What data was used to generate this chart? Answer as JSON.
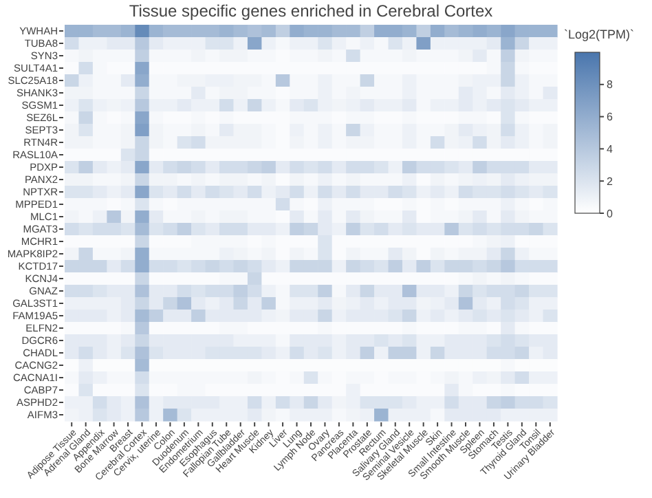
{
  "chart_data": {
    "type": "heatmap",
    "title": "Tissue specific genes enriched in Cerebral Cortex",
    "clabel": "`Log2(TPM)`",
    "color": "#4a76ad",
    "clim": [
      0,
      10
    ],
    "cticks": [
      0,
      2,
      4,
      6,
      8
    ],
    "categories": [
      "Adipose Tissue",
      "Adrenal Gland",
      "Appendix",
      "Bone Marrow",
      "Breast",
      "Cerebral Cortex",
      "Cervix, uterine",
      "Colon",
      "Duodenum",
      "Endometrium",
      "Esophagus",
      "Fallopian Tube",
      "Gallbladder",
      "Heart Muscle",
      "Kidney",
      "Liver",
      "Lung",
      "Lymph Node",
      "Ovary",
      "Pancreas",
      "Placenta",
      "Prostate",
      "Rectum",
      "Salivary Gland",
      "Seminal Vesicle",
      "Skeletal Muscle",
      "Skin",
      "Small Intestine",
      "Smooth Muscle",
      "Spleen",
      "Stomach",
      "Testis",
      "Thyroid Gland",
      "Tonsil",
      "Urinary Bladder"
    ],
    "y_categories": [
      "YWHAH",
      "TUBA8",
      "SYN3",
      "SULT4A1",
      "SLC25A18",
      "SHANK3",
      "SGSM1",
      "SEZ6L",
      "SEPT3",
      "RTN4R",
      "RASL10A",
      "PDXP",
      "PANX2",
      "NPTXR",
      "MPPED1",
      "MLC1",
      "MGAT3",
      "MCHR1",
      "MAPK8IP2",
      "KCTD17",
      "KCNJ4",
      "GNAZ",
      "GAL3ST1",
      "FAM19A5",
      "ELFN2",
      "DGCR6",
      "CHADL",
      "CACNG2",
      "CACNA1I",
      "CABP7",
      "ASPHD2",
      "AIFM3"
    ],
    "cells": [
      [
        5.5,
        5.5,
        5,
        5,
        5.5,
        8.5,
        5.5,
        5,
        5,
        5,
        5,
        5.5,
        5,
        4.5,
        5,
        3.5,
        6,
        5.5,
        5.5,
        5,
        5,
        3.5,
        6,
        6,
        5.5,
        3.5,
        6,
        5,
        5.5,
        6,
        5.5,
        6.5,
        5.5,
        5.5,
        5.5
      ],
      [
        2.5,
        1,
        1,
        1.5,
        1.5,
        4,
        1.5,
        1,
        1,
        1,
        2,
        2,
        1,
        6.5,
        1,
        0.5,
        1,
        1,
        2,
        1,
        0.5,
        1,
        0.5,
        2,
        1,
        7,
        1,
        1,
        1,
        1,
        1.5,
        5.5,
        3,
        1,
        1
      ],
      [
        0.5,
        0.8,
        0.5,
        0.5,
        0.5,
        3.5,
        0.5,
        0.5,
        0.5,
        0.8,
        0.5,
        0.8,
        0.8,
        0.5,
        0.5,
        0.3,
        0.5,
        0.5,
        0.8,
        0.5,
        2.5,
        0.5,
        0.5,
        0.5,
        0.8,
        0.5,
        0.5,
        0.5,
        0.8,
        1.5,
        0.5,
        3.5,
        0.8,
        0.5,
        0.5
      ],
      [
        0.3,
        2.5,
        0.5,
        0.3,
        0.3,
        6.5,
        0.3,
        0.3,
        0.3,
        0.3,
        0.3,
        0.3,
        0.3,
        0.3,
        0.3,
        0.3,
        0.3,
        0.3,
        0.3,
        0.3,
        0.3,
        0.3,
        0.3,
        0.3,
        0.3,
        0.3,
        0.3,
        0.3,
        0.3,
        0.3,
        0.5,
        3,
        0.5,
        0.3,
        0.3
      ],
      [
        3,
        1,
        0.5,
        0.5,
        1.5,
        6,
        0.5,
        0.5,
        0.8,
        0.8,
        1,
        1,
        0.8,
        0.8,
        0.5,
        4,
        0.5,
        0.5,
        1,
        0.5,
        0.5,
        3,
        0.5,
        0.5,
        1,
        0.5,
        0.5,
        0.5,
        0.8,
        1,
        1,
        3,
        1,
        0.5,
        0.5
      ],
      [
        0.8,
        0.8,
        0.5,
        0.5,
        0.5,
        3,
        0.5,
        0.5,
        0.5,
        1.5,
        0.5,
        0.8,
        0.8,
        0.5,
        0.5,
        0.3,
        0.5,
        0.5,
        1,
        0.5,
        0.8,
        0.5,
        0.5,
        0.5,
        1,
        0.5,
        0.5,
        0.5,
        1.5,
        1,
        0.5,
        1.5,
        1,
        0.5,
        1.5
      ],
      [
        1,
        2,
        1,
        0.8,
        1,
        4,
        1,
        1,
        1.5,
        1,
        1,
        2.5,
        1,
        3,
        1,
        0.5,
        1.5,
        2,
        1,
        0.8,
        1,
        1.5,
        1,
        1,
        1.5,
        0.5,
        1,
        1,
        1.5,
        1,
        1.5,
        2,
        1.5,
        1,
        1
      ],
      [
        0.5,
        3,
        0.5,
        0.3,
        0.5,
        6.5,
        0.5,
        0.3,
        0.3,
        0.5,
        0.3,
        0.5,
        0.3,
        0.3,
        0.3,
        0.3,
        0.5,
        0.5,
        0.5,
        0.3,
        0.5,
        0.5,
        0.3,
        0.3,
        0.5,
        0.3,
        0.3,
        0.3,
        0.5,
        0.5,
        0.3,
        2,
        0.5,
        0.3,
        0.3
      ],
      [
        0.8,
        2,
        0.5,
        0.5,
        0.8,
        7,
        0.8,
        0.5,
        0.5,
        0.8,
        0.5,
        1.5,
        0.8,
        0.8,
        0.5,
        0.3,
        1,
        0.5,
        1,
        0.5,
        3,
        1,
        0.5,
        0.5,
        1,
        0.5,
        0.5,
        0.8,
        1.5,
        1,
        0.8,
        2.5,
        1,
        0.5,
        0.8
      ],
      [
        0.8,
        0.8,
        0.5,
        0.5,
        0.8,
        3,
        0.8,
        0.5,
        2,
        2.5,
        0.8,
        0.8,
        0.8,
        0.8,
        0.5,
        0.3,
        0.8,
        0.5,
        1,
        0.5,
        0.8,
        0.8,
        0.5,
        0.5,
        1,
        0.5,
        2.5,
        0.8,
        1,
        2.5,
        0.8,
        1.5,
        1,
        0.5,
        0.8
      ],
      [
        0.3,
        0.3,
        0.3,
        0.3,
        2,
        3,
        0.3,
        0.3,
        0.3,
        0.3,
        0.3,
        0.3,
        0.3,
        0.3,
        0.3,
        0.3,
        0.3,
        0.3,
        0.3,
        0.3,
        0.3,
        0.3,
        0.3,
        0.3,
        0.3,
        0.3,
        0.3,
        0.3,
        0.3,
        0.3,
        0.3,
        0.3,
        0.3,
        0.3,
        0.3
      ],
      [
        2,
        3.5,
        1.5,
        1,
        1.5,
        6.5,
        1.5,
        2.5,
        3,
        2.5,
        1.5,
        2.5,
        2.5,
        3,
        3.5,
        1.5,
        2.5,
        2,
        2.5,
        1.5,
        2.5,
        2.5,
        2,
        1,
        3.5,
        2.5,
        2.5,
        2,
        1.5,
        3.5,
        2.5,
        2.5,
        2.5,
        1.5,
        1.5
      ],
      [
        0.8,
        0.8,
        0.5,
        0.5,
        0.8,
        3,
        0.8,
        0.8,
        0.5,
        0.8,
        0.5,
        0.8,
        0.8,
        0.5,
        0.8,
        0.3,
        0.8,
        0.5,
        1,
        0.5,
        0.8,
        0.5,
        0.5,
        0.5,
        1,
        0.3,
        0.8,
        0.5,
        0.8,
        1,
        0.8,
        1.5,
        1,
        0.8,
        0.8
      ],
      [
        2,
        2,
        1.5,
        1,
        1.5,
        6.5,
        2,
        1.5,
        2.5,
        1.5,
        2.5,
        2,
        1.5,
        2.5,
        1,
        1.5,
        2.5,
        1,
        2.5,
        1.5,
        2.5,
        1.5,
        1.5,
        2.5,
        2,
        1,
        1.5,
        1,
        2.5,
        2,
        2,
        2.5,
        2,
        1.5,
        2
      ],
      [
        0.5,
        0.5,
        0.5,
        0.3,
        0.5,
        2,
        0.5,
        0.3,
        0.5,
        0.5,
        0.5,
        0.5,
        0.5,
        0.5,
        0.5,
        2.5,
        0.5,
        0.3,
        1,
        0.5,
        0.5,
        0.5,
        0.3,
        0.3,
        0.5,
        0.3,
        0.5,
        0.3,
        0.5,
        0.5,
        0.5,
        1,
        0.5,
        0.3,
        0.5
      ],
      [
        0.8,
        0.5,
        1,
        4,
        0.8,
        6,
        1.5,
        0.5,
        0.5,
        0.8,
        0.5,
        0.8,
        0.8,
        0.5,
        0.5,
        0.3,
        1.5,
        0.5,
        1.5,
        0.5,
        1.5,
        0.8,
        0.5,
        0.5,
        1.5,
        0.3,
        0.5,
        0.5,
        0.8,
        1.5,
        0.5,
        1.5,
        0.8,
        0.5,
        0.5
      ],
      [
        2.5,
        2,
        2.5,
        2.5,
        2,
        5,
        2,
        2.5,
        3.5,
        2,
        1.5,
        2.5,
        2.5,
        1.5,
        1.5,
        1,
        3.5,
        3,
        1.5,
        1,
        3.5,
        2,
        2.5,
        1.5,
        2,
        1.5,
        1.5,
        4,
        2,
        2.5,
        2,
        2.5,
        2.5,
        3,
        2
      ],
      [
        0.3,
        0.3,
        0.3,
        0.3,
        0.3,
        3,
        0.3,
        0.3,
        0.3,
        0.5,
        0.5,
        0.5,
        0.5,
        0.3,
        0.5,
        0.3,
        0.3,
        0.3,
        2,
        0.3,
        0.3,
        0.3,
        0.3,
        0.3,
        0.3,
        0.3,
        0.3,
        0.3,
        0.3,
        0.5,
        0.8,
        1,
        0.3,
        0.3,
        0.3
      ],
      [
        0.8,
        3,
        0.5,
        0.5,
        0.8,
        6,
        0.5,
        0.5,
        0.5,
        0.5,
        0.5,
        1,
        0.8,
        0.5,
        0.8,
        0.3,
        0.8,
        0.5,
        2,
        0.3,
        0.8,
        0.5,
        0.5,
        1.5,
        0.8,
        0.3,
        0.8,
        0.5,
        0.8,
        0.8,
        1.5,
        3,
        1,
        0.5,
        0.5
      ],
      [
        3,
        3,
        3,
        1.5,
        2.5,
        6,
        2.5,
        2.5,
        2,
        2.5,
        3,
        2.5,
        3,
        2.5,
        1.5,
        1,
        3,
        3,
        3,
        1,
        3,
        2.5,
        2,
        3.5,
        1.5,
        3.5,
        2,
        3,
        3,
        2.5,
        3,
        4,
        2.5,
        2.5,
        2.5
      ],
      [
        0.3,
        0.3,
        0.3,
        0.3,
        0.3,
        3,
        0.3,
        0.3,
        0.3,
        0.3,
        0.3,
        0.5,
        0.5,
        3,
        0.3,
        0.3,
        0.3,
        0.3,
        0.3,
        0.3,
        0.3,
        0.3,
        0.3,
        0.3,
        0.3,
        0.3,
        0.3,
        0.3,
        0.5,
        0.8,
        0.5,
        0.8,
        0.5,
        0.3,
        0.3
      ],
      [
        2.5,
        2.5,
        2,
        1.5,
        1.5,
        4.5,
        1.5,
        1.5,
        2.5,
        2,
        2.5,
        2.5,
        3.5,
        2.5,
        1,
        0.5,
        2,
        2,
        3.5,
        0.5,
        1.5,
        3,
        1.5,
        1.5,
        4.5,
        1.5,
        1.5,
        1,
        3,
        2,
        2.5,
        2.5,
        3,
        2,
        2
      ],
      [
        1,
        1,
        1,
        1,
        1.5,
        3,
        1.5,
        3,
        4.5,
        1.5,
        1,
        1.5,
        3,
        1.5,
        3.5,
        0.5,
        1,
        1,
        1.5,
        0.8,
        1,
        1.5,
        1,
        1.5,
        1.5,
        0.8,
        1,
        1.5,
        4.5,
        1.5,
        1,
        2.5,
        2,
        1,
        1
      ],
      [
        1.5,
        1.5,
        1.5,
        1,
        1.5,
        5,
        3.5,
        1.5,
        1.5,
        3.5,
        1.5,
        1.5,
        1.5,
        1.5,
        1,
        0.8,
        1.5,
        1.5,
        3,
        1,
        1.5,
        1.5,
        1.5,
        2,
        3,
        1,
        1.5,
        1,
        1.5,
        2,
        1.5,
        2,
        1.5,
        1,
        2
      ],
      [
        0.3,
        0.3,
        0.3,
        0.3,
        0.5,
        4,
        0.3,
        0.3,
        0.3,
        0.3,
        0.3,
        0.5,
        0.5,
        0.3,
        0.3,
        0.3,
        0.3,
        0.3,
        0.5,
        0.3,
        0.3,
        0.3,
        0.3,
        0.3,
        0.5,
        0.3,
        0.3,
        0.3,
        0.5,
        0.5,
        0.3,
        1.5,
        0.5,
        0.3,
        0.3
      ],
      [
        1.5,
        1.5,
        1.5,
        1,
        1.5,
        3,
        1.5,
        1.5,
        1.5,
        1.5,
        1.5,
        1.5,
        1,
        1,
        1,
        0.5,
        1.5,
        1.5,
        1.5,
        1,
        1.5,
        1.5,
        2,
        1.5,
        2,
        1,
        1,
        1.5,
        1.5,
        1.5,
        2,
        2.5,
        2,
        1.5,
        1.5
      ],
      [
        1.5,
        2.5,
        1.5,
        1,
        2,
        4.5,
        2,
        1.5,
        1.5,
        1.5,
        2,
        2,
        2,
        2,
        1.5,
        1,
        2.5,
        1.5,
        2,
        1,
        1.5,
        3.5,
        1,
        3.5,
        3.5,
        1,
        3,
        1.5,
        1.5,
        1.5,
        2.5,
        2.5,
        3,
        1,
        1.5
      ],
      [
        0.2,
        1,
        0.2,
        0.2,
        0.2,
        5,
        0.2,
        0.2,
        0.2,
        0.2,
        0.2,
        0.2,
        0.2,
        0.2,
        0.2,
        0.2,
        0.2,
        0.2,
        0.2,
        0.2,
        0.2,
        0.2,
        0.2,
        0.2,
        0.2,
        0.2,
        0.2,
        0.2,
        0.2,
        0.2,
        0.2,
        0.5,
        0.2,
        0.2,
        0.2
      ],
      [
        0.5,
        1.5,
        1,
        0.5,
        0.5,
        2.5,
        0.5,
        0.5,
        0.5,
        0.5,
        0.5,
        0.5,
        0.5,
        0.8,
        0.5,
        0.3,
        0.5,
        2,
        0.5,
        0.3,
        0.5,
        0.5,
        0.3,
        0.5,
        0.5,
        0.3,
        0.5,
        0.8,
        0.5,
        1,
        0.8,
        1.5,
        2.5,
        1,
        1
      ],
      [
        0.3,
        2,
        0.3,
        0.3,
        0.3,
        2,
        0.3,
        0.3,
        0.5,
        0.5,
        0.3,
        0.3,
        0.3,
        0.3,
        0.3,
        0.3,
        0.3,
        0.3,
        0.3,
        0.3,
        1,
        0.3,
        0.3,
        0.3,
        0.3,
        0.3,
        0.3,
        1.5,
        0.5,
        0.3,
        0.3,
        0.5,
        0.3,
        0.3,
        0.3
      ],
      [
        1,
        1,
        2.5,
        1.5,
        1,
        4.5,
        1,
        1.5,
        1.5,
        1.5,
        1.5,
        1,
        1,
        2.5,
        1,
        2.5,
        1.5,
        3,
        1.5,
        0.8,
        1,
        2,
        2,
        2,
        1.5,
        1,
        1,
        2.5,
        1.5,
        1.5,
        3,
        3.5,
        2.5,
        2.5,
        2
      ],
      [
        0.8,
        1,
        2,
        1.5,
        1,
        4,
        1,
        5,
        2,
        1,
        1,
        1,
        1,
        1.5,
        0.8,
        0.5,
        1,
        1,
        1,
        0.5,
        0.8,
        1,
        5.5,
        1,
        1,
        1,
        0.5,
        1.5,
        1.5,
        1.5,
        1.5,
        1,
        1,
        1,
        1
      ]
    ]
  }
}
